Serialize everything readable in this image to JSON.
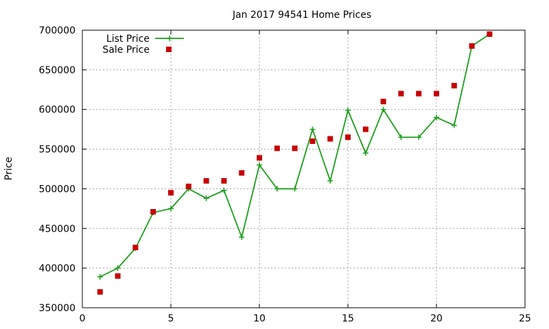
{
  "chart_data": {
    "type": "line",
    "title": "Jan 2017 94541 Home Prices",
    "xlabel": "",
    "ylabel": "Price",
    "xlim": [
      0,
      25
    ],
    "ylim": [
      350000,
      700000
    ],
    "x_ticks": [
      0,
      5,
      10,
      15,
      20,
      25
    ],
    "y_ticks": [
      350000,
      400000,
      450000,
      500000,
      550000,
      600000,
      650000,
      700000
    ],
    "grid": true,
    "legend_position": "top-left",
    "series": [
      {
        "name": "List Price",
        "style": "line+plus-markers",
        "color": "#1a9e1a",
        "points": [
          [
            1,
            389000
          ],
          [
            2,
            400000
          ],
          [
            3,
            425000
          ],
          [
            4,
            470000
          ],
          [
            5,
            475000
          ],
          [
            6,
            500000
          ],
          [
            7,
            488000
          ],
          [
            8,
            498000
          ],
          [
            9,
            439000
          ],
          [
            10,
            530000
          ],
          [
            11,
            500000
          ],
          [
            12,
            500000
          ],
          [
            13,
            575000
          ],
          [
            14,
            510000
          ],
          [
            15,
            599000
          ],
          [
            16,
            545000
          ],
          [
            17,
            600000
          ],
          [
            18,
            565000
          ],
          [
            19,
            565000
          ],
          [
            20,
            590000
          ],
          [
            21,
            580000
          ],
          [
            22,
            680000
          ],
          [
            23,
            695000
          ]
        ]
      },
      {
        "name": "Sale Price",
        "style": "square-markers",
        "color": "#c80000",
        "points": [
          [
            1,
            370000
          ],
          [
            2,
            390000
          ],
          [
            3,
            426000
          ],
          [
            4,
            471000
          ],
          [
            5,
            495000
          ],
          [
            6,
            503000
          ],
          [
            7,
            510000
          ],
          [
            8,
            510000
          ],
          [
            9,
            520000
          ],
          [
            10,
            539000
          ],
          [
            11,
            551000
          ],
          [
            12,
            551000
          ],
          [
            13,
            560000
          ],
          [
            14,
            563000
          ],
          [
            15,
            565000
          ],
          [
            16,
            575000
          ],
          [
            17,
            610000
          ],
          [
            18,
            620000
          ],
          [
            19,
            620000
          ],
          [
            20,
            620000
          ],
          [
            21,
            630000
          ],
          [
            22,
            680000
          ],
          [
            23,
            695000
          ]
        ]
      }
    ]
  }
}
